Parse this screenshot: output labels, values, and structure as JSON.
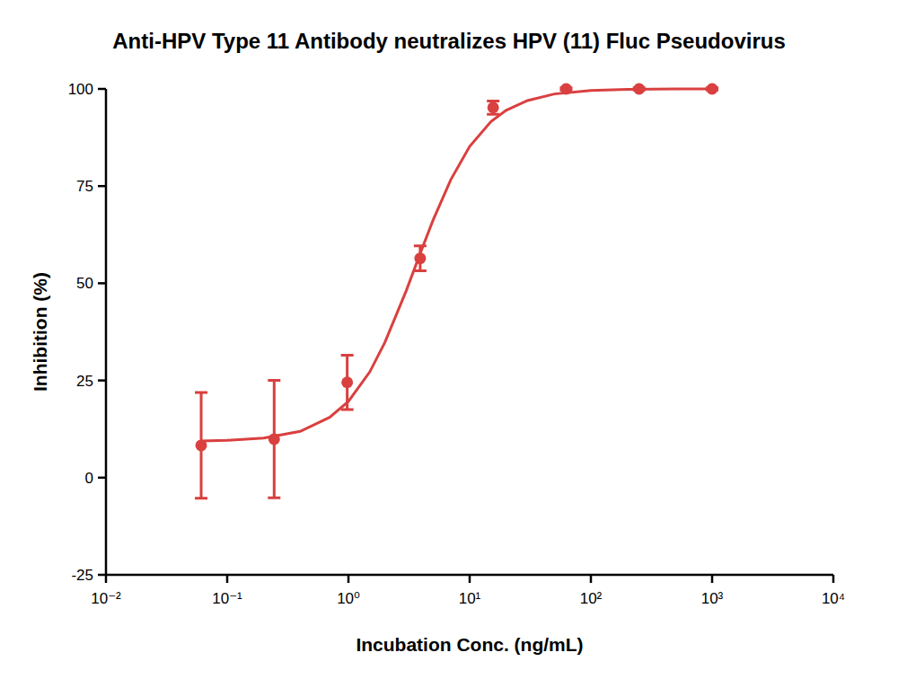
{
  "chart_data": {
    "type": "scatter",
    "title": "Anti-HPV Type 11 Antibody neutralizes HPV (11) Fluc Pseudovirus",
    "x_label": "Incubation Conc. (ng/mL)",
    "y_label": "Inhibition (%)",
    "log": "x",
    "grid": false,
    "xlim": [
      0.01,
      10000
    ],
    "ylim": [
      -25,
      100
    ],
    "xticks": [
      {
        "value": 0.01,
        "label": "10⁻²"
      },
      {
        "value": 0.1,
        "label": "10⁻¹"
      },
      {
        "value": 1,
        "label": "10⁰"
      },
      {
        "value": 10,
        "label": "10¹"
      },
      {
        "value": 100,
        "label": "10²"
      },
      {
        "value": 1000,
        "label": "10³"
      },
      {
        "value": 10000,
        "label": "10⁴"
      }
    ],
    "yticks": [
      -25,
      0,
      25,
      50,
      75,
      100
    ],
    "series": [
      {
        "type": "scatter",
        "color": "#d9403f",
        "marker": "circle",
        "x": [
          0.061,
          0.244,
          0.977,
          3.906,
          15.625,
          62.5,
          250,
          1000
        ],
        "values": [
          8.3,
          9.9,
          24.5,
          56.4,
          95.2,
          100,
          100,
          100
        ],
        "errors": [
          13.6,
          15.1,
          7.0,
          3.2,
          1.7,
          0.3,
          0.3,
          0.3
        ]
      },
      {
        "type": "line",
        "color": "#d9403f",
        "line_style": "solid",
        "x": [
          0.06,
          0.1,
          0.2,
          0.4,
          0.7,
          1,
          1.5,
          2,
          3,
          4,
          5,
          7,
          10,
          15,
          20,
          30,
          50,
          100,
          200,
          500,
          1000
        ],
        "values": [
          9.4,
          9.6,
          10.2,
          11.9,
          15.5,
          19.6,
          27.2,
          34.8,
          48.1,
          58.5,
          66.3,
          76.7,
          85.2,
          91.6,
          94.5,
          97.0,
          98.7,
          99.6,
          99.9,
          100,
          100
        ]
      }
    ]
  }
}
